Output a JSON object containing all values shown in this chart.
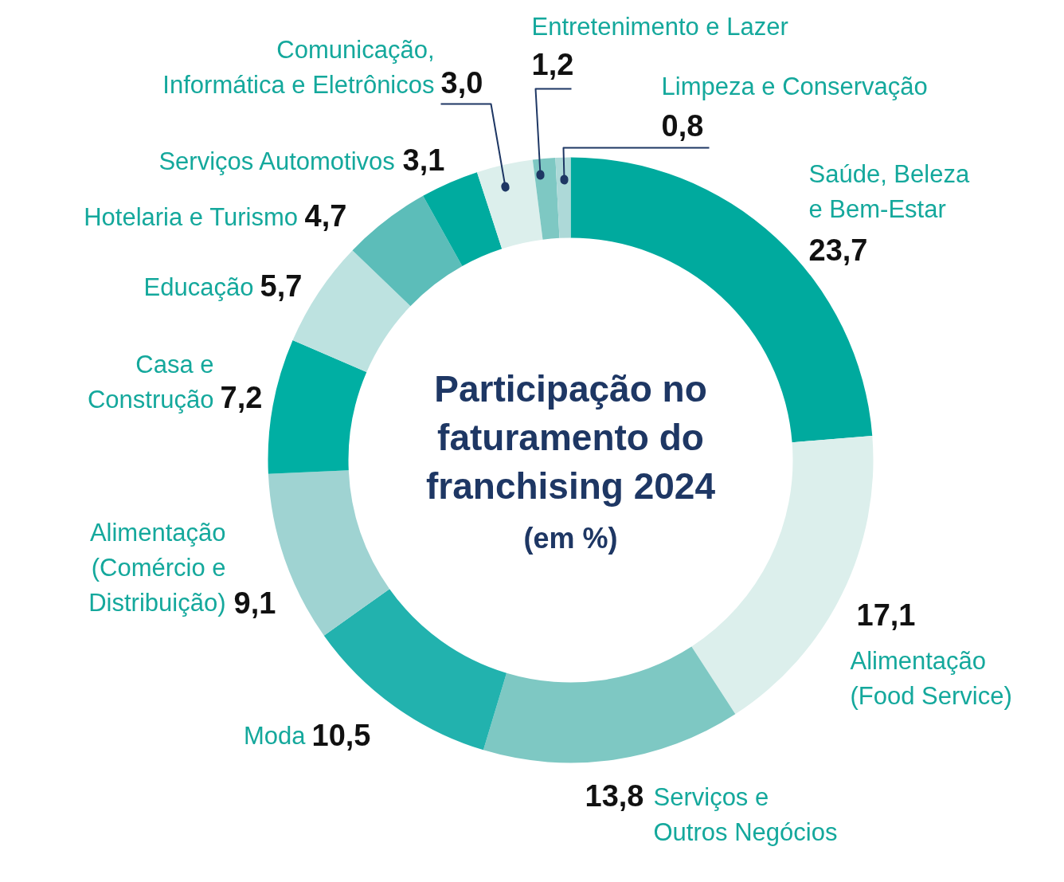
{
  "chart_data": {
    "type": "donut",
    "title": "Participação no faturamento do franchising 2024",
    "subtitle": "(em %)",
    "categories": [
      "Saúde, Beleza e Bem-Estar",
      "Alimentação (Food Service)",
      "Serviços e Outros Negócios",
      "Moda",
      "Alimentação (Comércio e Distribuição)",
      "Casa e Construção",
      "Educação",
      "Hotelaria e Turismo",
      "Serviços Automotivos",
      "Comunicação, Informática e Eletrônicos",
      "Entretenimento e Lazer",
      "Limpeza e Conservação"
    ],
    "values": [
      23.7,
      17.1,
      13.8,
      10.5,
      9.1,
      7.2,
      5.7,
      4.7,
      3.1,
      3.0,
      1.2,
      0.8
    ],
    "value_labels": [
      "23,7",
      "17,1",
      "13,8",
      "10,5",
      "9,1",
      "7,2",
      "5,7",
      "4,7",
      "3,1",
      "3,0",
      "1,2",
      "0,8"
    ],
    "colors": [
      "#00aa9e",
      "#dcefec",
      "#7ec8c3",
      "#22b2ae",
      "#9fd3d2",
      "#00afa3",
      "#bde2e0",
      "#5cbdb9",
      "#00ab9f",
      "#dcefec",
      "#7ec8c3",
      "#add9d8"
    ]
  }
}
